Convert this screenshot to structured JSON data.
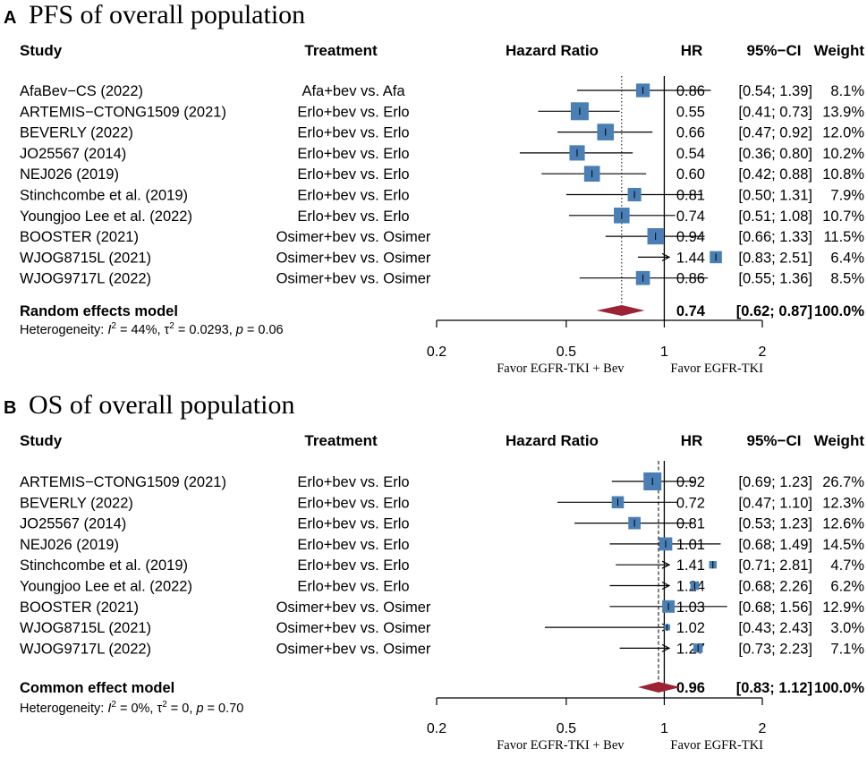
{
  "colors": {
    "box": "#4a7fb5",
    "diamond": "#9b2335",
    "line": "#000000"
  },
  "chart_data": [
    {
      "type": "forest",
      "panel": "A",
      "title": "PFS of overall population",
      "headers": {
        "study": "Study",
        "treatment": "Treatment",
        "plot": "Hazard Ratio",
        "hr": "HR",
        "ci": "95%−CI",
        "weight": "Weight"
      },
      "xscale": "log",
      "xlim": [
        0.2,
        2
      ],
      "xticks": [
        {
          "value": 0.2,
          "label": "0.2"
        },
        {
          "value": 0.5,
          "label": "0.5"
        },
        {
          "value": 1,
          "label": "1"
        },
        {
          "value": 2,
          "label": "2"
        }
      ],
      "favor_left": "Favor EGFR-TKI + Bev",
      "favor_right": "Favor EGFR-TKI",
      "studies": [
        {
          "study": "AfaBev−CS (2022)",
          "treatment": "Afa+bev vs. Afa",
          "hr": 0.86,
          "lower": 0.54,
          "upper": 1.39,
          "weight": 8.1,
          "hr_text": "0.86",
          "ci_text": "[0.54; 1.39]",
          "weight_text": "8.1%"
        },
        {
          "study": "ARTEMIS−CTONG1509 (2021)",
          "treatment": "Erlo+bev vs. Erlo",
          "hr": 0.55,
          "lower": 0.41,
          "upper": 0.73,
          "weight": 13.9,
          "hr_text": "0.55",
          "ci_text": "[0.41; 0.73]",
          "weight_text": "13.9%"
        },
        {
          "study": "BEVERLY (2022)",
          "treatment": "Erlo+bev vs. Erlo",
          "hr": 0.66,
          "lower": 0.47,
          "upper": 0.92,
          "weight": 12.0,
          "hr_text": "0.66",
          "ci_text": "[0.47; 0.92]",
          "weight_text": "12.0%"
        },
        {
          "study": "JO25567 (2014)",
          "treatment": "Erlo+bev vs. Erlo",
          "hr": 0.54,
          "lower": 0.36,
          "upper": 0.8,
          "weight": 10.2,
          "hr_text": "0.54",
          "ci_text": "[0.36; 0.80]",
          "weight_text": "10.2%"
        },
        {
          "study": "NEJ026 (2019)",
          "treatment": "Erlo+bev vs. Erlo",
          "hr": 0.6,
          "lower": 0.42,
          "upper": 0.88,
          "weight": 10.8,
          "hr_text": "0.60",
          "ci_text": "[0.42; 0.88]",
          "weight_text": "10.8%"
        },
        {
          "study": "Stinchcombe et al. (2019)",
          "treatment": "Erlo+bev vs. Erlo",
          "hr": 0.81,
          "lower": 0.5,
          "upper": 1.31,
          "weight": 7.9,
          "hr_text": "0.81",
          "ci_text": "[0.50; 1.31]",
          "weight_text": "7.9%"
        },
        {
          "study": "Youngjoo Lee et al. (2022)",
          "treatment": "Erlo+bev vs. Erlo",
          "hr": 0.74,
          "lower": 0.51,
          "upper": 1.08,
          "weight": 10.7,
          "hr_text": "0.74",
          "ci_text": "[0.51; 1.08]",
          "weight_text": "10.7%"
        },
        {
          "study": "BOOSTER (2021)",
          "treatment": "Osimer+bev vs. Osimer",
          "hr": 0.94,
          "lower": 0.66,
          "upper": 1.33,
          "weight": 11.5,
          "hr_text": "0.94",
          "ci_text": "[0.66; 1.33]",
          "weight_text": "11.5%"
        },
        {
          "study": "WJOG8715L (2021)",
          "treatment": "Osimer+bev vs. Osimer",
          "hr": 1.44,
          "lower": 0.83,
          "upper": 2.51,
          "weight": 6.4,
          "hr_text": "1.44",
          "ci_text": "[0.83; 2.51]",
          "weight_text": "6.4%"
        },
        {
          "study": "WJOG9717L (2022)",
          "treatment": "Osimer+bev vs. Osimer",
          "hr": 0.86,
          "lower": 0.55,
          "upper": 1.36,
          "weight": 8.5,
          "hr_text": "0.86",
          "ci_text": "[0.55; 1.36]",
          "weight_text": "8.5%"
        }
      ],
      "pooled": {
        "label": "Random effects model",
        "hr": 0.74,
        "lower": 0.62,
        "upper": 0.87,
        "hr_text": "0.74",
        "ci_text": "[0.62; 0.87]",
        "weight_text": "100.0%"
      },
      "heterogeneity": {
        "prefix": "Heterogeneity: ",
        "i2_symbol": "I",
        "i2_power": "2",
        "i2_value": " = 44%, ",
        "tau_symbol": "τ",
        "tau_power": "2",
        "tau_value": " = 0.0293, ",
        "p_symbol": "p",
        "p_value": " = 0.06"
      }
    },
    {
      "type": "forest",
      "panel": "B",
      "title": "OS of overall population",
      "headers": {
        "study": "Study",
        "treatment": "Treatment",
        "plot": "Hazard Ratio",
        "hr": "HR",
        "ci": "95%−CI",
        "weight": "Weight"
      },
      "xscale": "log",
      "xlim": [
        0.2,
        2
      ],
      "xticks": [
        {
          "value": 0.2,
          "label": "0.2"
        },
        {
          "value": 0.5,
          "label": "0.5"
        },
        {
          "value": 1,
          "label": "1"
        },
        {
          "value": 2,
          "label": "2"
        }
      ],
      "favor_left": "Favor EGFR-TKI + Bev",
      "favor_right": "Favor EGFR-TKI",
      "studies": [
        {
          "study": "ARTEMIS−CTONG1509 (2021)",
          "treatment": "Erlo+bev vs. Erlo",
          "hr": 0.92,
          "lower": 0.69,
          "upper": 1.23,
          "weight": 26.7,
          "hr_text": "0.92",
          "ci_text": "[0.69; 1.23]",
          "weight_text": "26.7%"
        },
        {
          "study": "BEVERLY (2022)",
          "treatment": "Erlo+bev vs. Erlo",
          "hr": 0.72,
          "lower": 0.47,
          "upper": 1.1,
          "weight": 12.3,
          "hr_text": "0.72",
          "ci_text": "[0.47; 1.10]",
          "weight_text": "12.3%"
        },
        {
          "study": "JO25567 (2014)",
          "treatment": "Erlo+bev vs. Erlo",
          "hr": 0.81,
          "lower": 0.53,
          "upper": 1.23,
          "weight": 12.6,
          "hr_text": "0.81",
          "ci_text": "[0.53; 1.23]",
          "weight_text": "12.6%"
        },
        {
          "study": "NEJ026 (2019)",
          "treatment": "Erlo+bev vs. Erlo",
          "hr": 1.01,
          "lower": 0.68,
          "upper": 1.49,
          "weight": 14.5,
          "hr_text": "1.01",
          "ci_text": "[0.68; 1.49]",
          "weight_text": "14.5%"
        },
        {
          "study": "Stinchcombe et al. (2019)",
          "treatment": "Erlo+bev vs. Erlo",
          "hr": 1.41,
          "lower": 0.71,
          "upper": 2.81,
          "weight": 4.7,
          "hr_text": "1.41",
          "ci_text": "[0.71; 2.81]",
          "weight_text": "4.7%"
        },
        {
          "study": "Youngjoo Lee et al. (2022)",
          "treatment": "Erlo+bev vs. Erlo",
          "hr": 1.24,
          "lower": 0.68,
          "upper": 2.26,
          "weight": 6.2,
          "hr_text": "1.24",
          "ci_text": "[0.68; 2.26]",
          "weight_text": "6.2%"
        },
        {
          "study": "BOOSTER (2021)",
          "treatment": "Osimer+bev vs. Osimer",
          "hr": 1.03,
          "lower": 0.68,
          "upper": 1.56,
          "weight": 12.9,
          "hr_text": "1.03",
          "ci_text": "[0.68; 1.56]",
          "weight_text": "12.9%"
        },
        {
          "study": "WJOG8715L (2021)",
          "treatment": "Osimer+bev vs. Osimer",
          "hr": 1.02,
          "lower": 0.43,
          "upper": 2.43,
          "weight": 3.0,
          "hr_text": "1.02",
          "ci_text": "[0.43; 2.43]",
          "weight_text": "3.0%"
        },
        {
          "study": "WJOG9717L (2022)",
          "treatment": "Osimer+bev vs. Osimer",
          "hr": 1.27,
          "lower": 0.73,
          "upper": 2.23,
          "weight": 7.1,
          "hr_text": "1.27",
          "ci_text": "[0.73; 2.23]",
          "weight_text": "7.1%"
        }
      ],
      "pooled": {
        "label": "Common effect model",
        "hr": 0.96,
        "lower": 0.83,
        "upper": 1.12,
        "hr_text": "0.96",
        "ci_text": "[0.83; 1.12]",
        "weight_text": "100.0%"
      },
      "heterogeneity": {
        "prefix": "Heterogeneity: ",
        "i2_symbol": "I",
        "i2_power": "2",
        "i2_value": " = 0%, ",
        "tau_symbol": "τ",
        "tau_power": "2",
        "tau_value": " = 0, ",
        "p_symbol": "p",
        "p_value": " = 0.70"
      }
    }
  ]
}
